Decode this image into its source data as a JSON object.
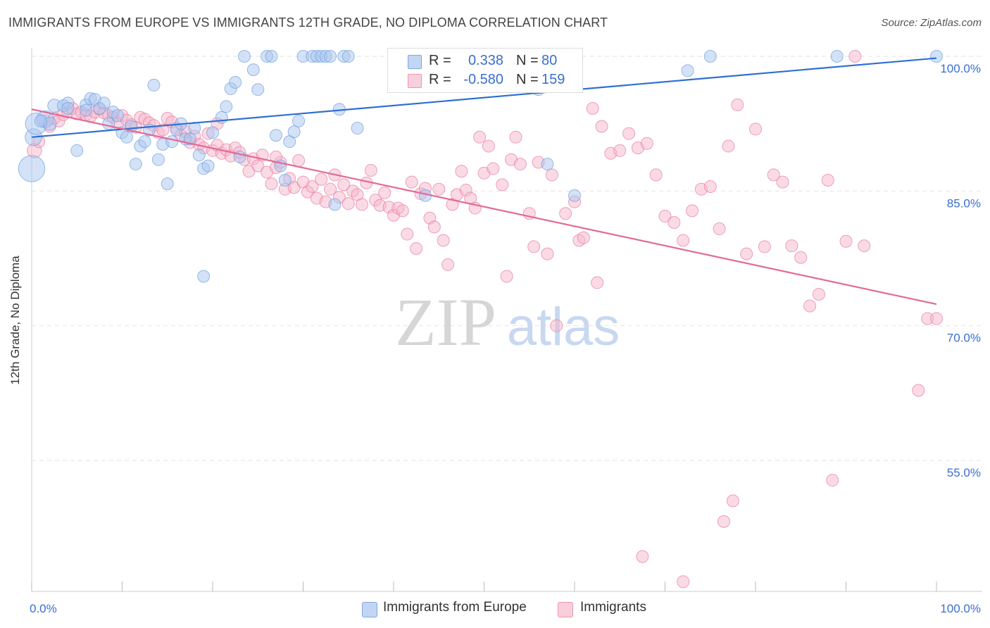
{
  "title": "IMMIGRANTS FROM EUROPE VS IMMIGRANTS 12TH GRADE, NO DIPLOMA CORRELATION CHART",
  "source": "Source: ZipAtlas.com",
  "watermark": {
    "zip": "ZIP",
    "atlas": "atlas"
  },
  "legend_top": {
    "rows": [
      {
        "r_label": "R =",
        "r_value": "0.338",
        "n_label": "N =",
        "n_value": "80",
        "color": "#a9c5f0"
      },
      {
        "r_label": "R =",
        "r_value": "-0.580",
        "n_label": "N =",
        "n_value": "159",
        "color": "#f6b8cb"
      }
    ]
  },
  "legend_bottom": {
    "items": [
      {
        "label": "Immigrants from Europe",
        "color": "#a9c5f0"
      },
      {
        "label": "Immigrants",
        "color": "#f6b8cb"
      }
    ]
  },
  "chart_data": {
    "type": "scatter",
    "title": "IMMIGRANTS FROM EUROPE VS IMMIGRANTS 12TH GRADE, NO DIPLOMA CORRELATION CHART",
    "xlabel": "",
    "ylabel": "12th Grade, No Diploma",
    "xlim": [
      0,
      100
    ],
    "ylim": [
      40,
      102
    ],
    "x_tick_labels": [
      "0.0%",
      "100.0%"
    ],
    "y_ticks": [
      100,
      85,
      70,
      55
    ],
    "y_tick_labels": [
      "100.0%",
      "85.0%",
      "70.0%",
      "55.0%"
    ],
    "grid": true,
    "series": [
      {
        "name": "Immigrants from Europe",
        "color": "#6f9fe0",
        "fill": "#a9c5f0",
        "trend": {
          "x": [
            0,
            100
          ],
          "y": [
            91.0,
            99.8
          ]
        },
        "points": [
          [
            0,
            87.5,
            2.2
          ],
          [
            0.2,
            91,
            1.4
          ],
          [
            0.5,
            92.5,
            1.8
          ],
          [
            1.5,
            93,
            1.4
          ],
          [
            2,
            92.5,
            1.1
          ],
          [
            2.5,
            94.5,
            1.1
          ],
          [
            3.5,
            94.5,
            1
          ],
          [
            4,
            94.8,
            1
          ],
          [
            5,
            89.5,
            1
          ],
          [
            6,
            94.6,
            1
          ],
          [
            6.5,
            95.3,
            1
          ],
          [
            7,
            95.2,
            1
          ],
          [
            7.5,
            94.2,
            1
          ],
          [
            8,
            94.8,
            1
          ],
          [
            8.5,
            92.5,
            1
          ],
          [
            9,
            93.8,
            1
          ],
          [
            9.5,
            93.4,
            1
          ],
          [
            10,
            91.5,
            1
          ],
          [
            10.5,
            91,
            1
          ],
          [
            11,
            92.2,
            1
          ],
          [
            11.5,
            88,
            1
          ],
          [
            12,
            90,
            1
          ],
          [
            12.5,
            90.5,
            1
          ],
          [
            13,
            91.8,
            1
          ],
          [
            13.5,
            96.8,
            1
          ],
          [
            14,
            88.5,
            1
          ],
          [
            14.5,
            90.2,
            1
          ],
          [
            15,
            85.8,
            1
          ],
          [
            15.5,
            90.5,
            1
          ],
          [
            16,
            91.8,
            1
          ],
          [
            16.5,
            92.5,
            1
          ],
          [
            17,
            90.8,
            1
          ],
          [
            17.5,
            90.8,
            1
          ],
          [
            18,
            92,
            1
          ],
          [
            18.5,
            89,
            1
          ],
          [
            19,
            87.5,
            1
          ],
          [
            19.5,
            87.8,
            1
          ],
          [
            20,
            91.5,
            1
          ],
          [
            21,
            93.2,
            1
          ],
          [
            21.5,
            94.4,
            1
          ],
          [
            22,
            96.4,
            1
          ],
          [
            22.5,
            97.1,
            1
          ],
          [
            23,
            88.8,
            1
          ],
          [
            23.5,
            100,
            1
          ],
          [
            24.5,
            98.5,
            1
          ],
          [
            25,
            96.3,
            1
          ],
          [
            26,
            100,
            1
          ],
          [
            26.5,
            100,
            1
          ],
          [
            27,
            91.2,
            1
          ],
          [
            27.5,
            87.8,
            1
          ],
          [
            28,
            86.2,
            1
          ],
          [
            28.5,
            90.5,
            1
          ],
          [
            29,
            91.6,
            1
          ],
          [
            29.5,
            92.8,
            1
          ],
          [
            30,
            100,
            1
          ],
          [
            31,
            100,
            1
          ],
          [
            31.5,
            100,
            1
          ],
          [
            32,
            100,
            1
          ],
          [
            32.5,
            100,
            1
          ],
          [
            33,
            100,
            1
          ],
          [
            33.5,
            83.5,
            1
          ],
          [
            34,
            94.1,
            1
          ],
          [
            34.5,
            100,
            1
          ],
          [
            35,
            100,
            1
          ],
          [
            36,
            92,
            1
          ],
          [
            40.5,
            100,
            1
          ],
          [
            43.5,
            84.5,
            1
          ],
          [
            47,
            100,
            1
          ],
          [
            51,
            100,
            1
          ],
          [
            56,
            96.3,
            1
          ],
          [
            57,
            88,
            1
          ],
          [
            60,
            84.5,
            1
          ],
          [
            72.5,
            98.4,
            1
          ],
          [
            75,
            100,
            1
          ],
          [
            89,
            100,
            1
          ],
          [
            100,
            100,
            1
          ],
          [
            19,
            75.5,
            1
          ],
          [
            4,
            94.2,
            1
          ],
          [
            1,
            92.8,
            1
          ],
          [
            6,
            94,
            1
          ]
        ]
      },
      {
        "name": "Immigrants",
        "color": "#e87aa0",
        "fill": "#f6b8cb",
        "trend": {
          "x": [
            0,
            100
          ],
          "y": [
            94.1,
            72.4
          ]
        },
        "points": [
          [
            0.3,
            89.5,
            1.2
          ],
          [
            0.8,
            90.5,
            1
          ],
          [
            1.5,
            92.8,
            1
          ],
          [
            2,
            92.2,
            1
          ],
          [
            2.5,
            93.1,
            1
          ],
          [
            3,
            92.8,
            1
          ],
          [
            3.5,
            93.5,
            1
          ],
          [
            4,
            93.8,
            1
          ],
          [
            4.5,
            94.2,
            1
          ],
          [
            5,
            93.6,
            1
          ],
          [
            5.5,
            93.8,
            1
          ],
          [
            6,
            93.5,
            1
          ],
          [
            6.5,
            93.3,
            1
          ],
          [
            7,
            93.8,
            1
          ],
          [
            7.5,
            94.1,
            1
          ],
          [
            8,
            93.7,
            1
          ],
          [
            8.5,
            93.4,
            1
          ],
          [
            9,
            93.2,
            1
          ],
          [
            9.5,
            92.5,
            1
          ],
          [
            10,
            93.4,
            1
          ],
          [
            10.5,
            92.9,
            1
          ],
          [
            11,
            92.4,
            1
          ],
          [
            11.5,
            92.1,
            1
          ],
          [
            12,
            93.2,
            1
          ],
          [
            12.5,
            93,
            1
          ],
          [
            13,
            92.6,
            1
          ],
          [
            13.5,
            92.3,
            1
          ],
          [
            14,
            91.5,
            1
          ],
          [
            14.5,
            91.8,
            1
          ],
          [
            15,
            93.1,
            1
          ],
          [
            15.5,
            92.7,
            1
          ],
          [
            16,
            92,
            1
          ],
          [
            16.5,
            91.2,
            1
          ],
          [
            17,
            91.6,
            1
          ],
          [
            17.5,
            90.4,
            1
          ],
          [
            18,
            91.1,
            1
          ],
          [
            18.5,
            90.2,
            1
          ],
          [
            19,
            89.8,
            1
          ],
          [
            19.5,
            91.4,
            1
          ],
          [
            20,
            89.5,
            1
          ],
          [
            20.5,
            90.1,
            1
          ],
          [
            21,
            89.2,
            1
          ],
          [
            21.5,
            89.6,
            1
          ],
          [
            22,
            88.9,
            1
          ],
          [
            22.5,
            89.8,
            1
          ],
          [
            23,
            89.3,
            1
          ],
          [
            23.5,
            88.5,
            1
          ],
          [
            24,
            87.2,
            1
          ],
          [
            24.5,
            88.6,
            1
          ],
          [
            25,
            87.8,
            1
          ],
          [
            25.5,
            89,
            1
          ],
          [
            26,
            87.1,
            1
          ],
          [
            26.5,
            85.8,
            1
          ],
          [
            27,
            87.6,
            1
          ],
          [
            27.5,
            88.2,
            1
          ],
          [
            28,
            85.2,
            1
          ],
          [
            28.5,
            86.4,
            1
          ],
          [
            29,
            85.4,
            1
          ],
          [
            29.5,
            88.4,
            1
          ],
          [
            30,
            86,
            1
          ],
          [
            30.5,
            84.9,
            1
          ],
          [
            31,
            85.5,
            1
          ],
          [
            31.5,
            84.2,
            1
          ],
          [
            32,
            86.3,
            1
          ],
          [
            32.5,
            83.8,
            1
          ],
          [
            33,
            85.2,
            1
          ],
          [
            33.5,
            86.8,
            1
          ],
          [
            34,
            84.3,
            1
          ],
          [
            34.5,
            85.7,
            1
          ],
          [
            35,
            83.6,
            1
          ],
          [
            35.5,
            85,
            1
          ],
          [
            36,
            84.6,
            1
          ],
          [
            36.5,
            83.5,
            1
          ],
          [
            37,
            85.9,
            1
          ],
          [
            37.5,
            87.3,
            1
          ],
          [
            38,
            84,
            1
          ],
          [
            38.5,
            83.4,
            1
          ],
          [
            39,
            84.8,
            1
          ],
          [
            39.5,
            83.2,
            1
          ],
          [
            40,
            82.3,
            1
          ],
          [
            40.5,
            83.1,
            1
          ],
          [
            41,
            82.8,
            1
          ],
          [
            41.5,
            80.2,
            1
          ],
          [
            42,
            86,
            1
          ],
          [
            42.5,
            78.6,
            1
          ],
          [
            43,
            84.7,
            1
          ],
          [
            43.5,
            85.3,
            1
          ],
          [
            44,
            82,
            1
          ],
          [
            44.5,
            81,
            1
          ],
          [
            45,
            85.2,
            1
          ],
          [
            45.5,
            79.5,
            1
          ],
          [
            46,
            76.8,
            1
          ],
          [
            46.5,
            83.5,
            1
          ],
          [
            47,
            84.6,
            1
          ],
          [
            47.5,
            87.2,
            1
          ],
          [
            48,
            85.1,
            1
          ],
          [
            48.5,
            84.2,
            1
          ],
          [
            49,
            83.1,
            1
          ],
          [
            49.5,
            91,
            1
          ],
          [
            50,
            87,
            1
          ],
          [
            50.5,
            90,
            1
          ],
          [
            51,
            87.5,
            1
          ],
          [
            52,
            85.7,
            1
          ],
          [
            52.5,
            75.5,
            1
          ],
          [
            53,
            88.5,
            1
          ],
          [
            53.5,
            91,
            1
          ],
          [
            54,
            88,
            1
          ],
          [
            55,
            82.5,
            1
          ],
          [
            55.5,
            78.8,
            1
          ],
          [
            56,
            88.2,
            1
          ],
          [
            57,
            78,
            1
          ],
          [
            57.5,
            86.8,
            1
          ],
          [
            58,
            70,
            1
          ],
          [
            59,
            82.5,
            1
          ],
          [
            60,
            83.8,
            1
          ],
          [
            60.5,
            79.5,
            1
          ],
          [
            61,
            79.8,
            1
          ],
          [
            62,
            94.2,
            1
          ],
          [
            62.5,
            74.8,
            1
          ],
          [
            63,
            92.2,
            1
          ],
          [
            64,
            89.2,
            1
          ],
          [
            65,
            89.5,
            1
          ],
          [
            66,
            91.4,
            1
          ],
          [
            67,
            89.8,
            1
          ],
          [
            68,
            90.3,
            1
          ],
          [
            69,
            86.8,
            1
          ],
          [
            70,
            82.2,
            1
          ],
          [
            71,
            81.5,
            1
          ],
          [
            72,
            79.5,
            1
          ],
          [
            73,
            82.8,
            1
          ],
          [
            74,
            85.2,
            1
          ],
          [
            75,
            85.5,
            1
          ],
          [
            76,
            80.8,
            1
          ],
          [
            77,
            90,
            1
          ],
          [
            78,
            94.6,
            1
          ],
          [
            79,
            78,
            1
          ],
          [
            80,
            91.9,
            1
          ],
          [
            81,
            78.8,
            1
          ],
          [
            82,
            86.8,
            1
          ],
          [
            83,
            86,
            1
          ],
          [
            84,
            78.9,
            1
          ],
          [
            85,
            77.6,
            1
          ],
          [
            86,
            72.2,
            1
          ],
          [
            87,
            73.5,
            1
          ],
          [
            88,
            86.2,
            1
          ],
          [
            90,
            79.4,
            1
          ],
          [
            91,
            100,
            1
          ],
          [
            92,
            78.9,
            1
          ],
          [
            98,
            62.8,
            1
          ],
          [
            99,
            70.8,
            1
          ],
          [
            88.5,
            52.8,
            1
          ],
          [
            77.5,
            50.5,
            1
          ],
          [
            76.5,
            48.2,
            1
          ],
          [
            67.5,
            44.3,
            1
          ],
          [
            72,
            41.5,
            1
          ],
          [
            100,
            70.8,
            1
          ],
          [
            20.5,
            92.5,
            1
          ],
          [
            27,
            88.8,
            1
          ]
        ]
      }
    ]
  }
}
